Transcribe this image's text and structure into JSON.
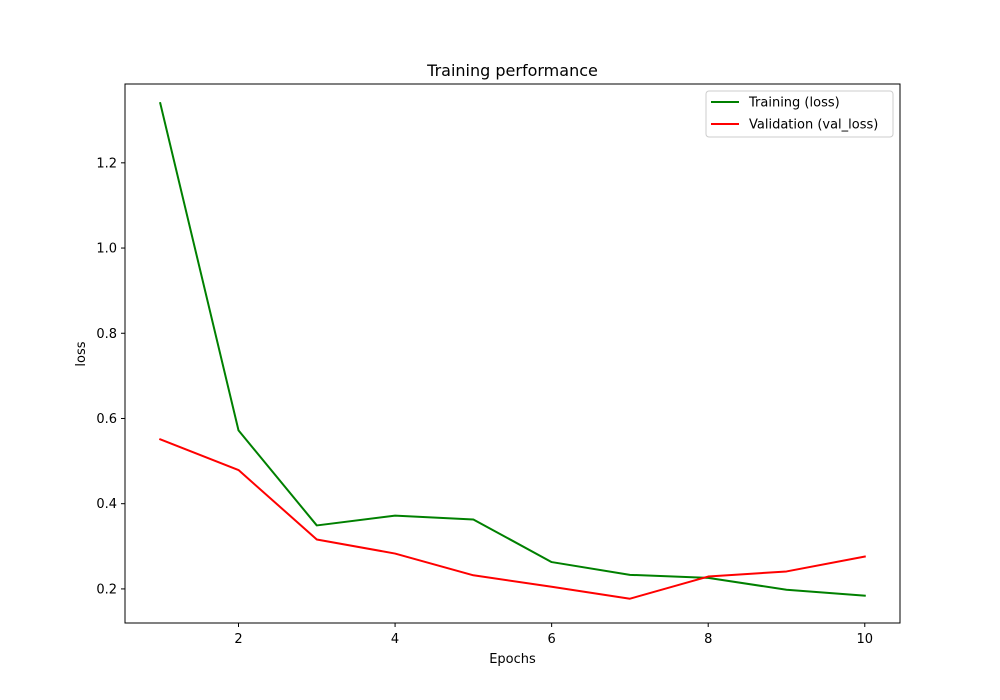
{
  "chart_data": {
    "type": "line",
    "title": "Training performance",
    "xlabel": "Epochs",
    "ylabel": "loss",
    "xlim": [
      0.55,
      10.45
    ],
    "ylim": [
      0.12,
      1.385
    ],
    "xticks": [
      2,
      4,
      6,
      8,
      10
    ],
    "yticks": [
      0.2,
      0.4,
      0.6,
      0.8,
      1.0,
      1.2
    ],
    "xtick_labels": [
      "2",
      "4",
      "6",
      "8",
      "10"
    ],
    "ytick_labels": [
      "0.2",
      "0.4",
      "0.6",
      "0.8",
      "1.0",
      "1.2"
    ],
    "grid": false,
    "legend_position": "top-right",
    "x": [
      1,
      2,
      3,
      4,
      5,
      6,
      7,
      8,
      9,
      10
    ],
    "series": [
      {
        "name": "Training (loss)",
        "color": "#008000",
        "values": [
          1.34,
          0.572,
          0.349,
          0.372,
          0.363,
          0.263,
          0.233,
          0.226,
          0.198,
          0.184
        ]
      },
      {
        "name": "Validation (val_loss)",
        "color": "#ff0000",
        "values": [
          0.551,
          0.479,
          0.316,
          0.283,
          0.232,
          0.205,
          0.177,
          0.229,
          0.241,
          0.276
        ]
      }
    ]
  }
}
